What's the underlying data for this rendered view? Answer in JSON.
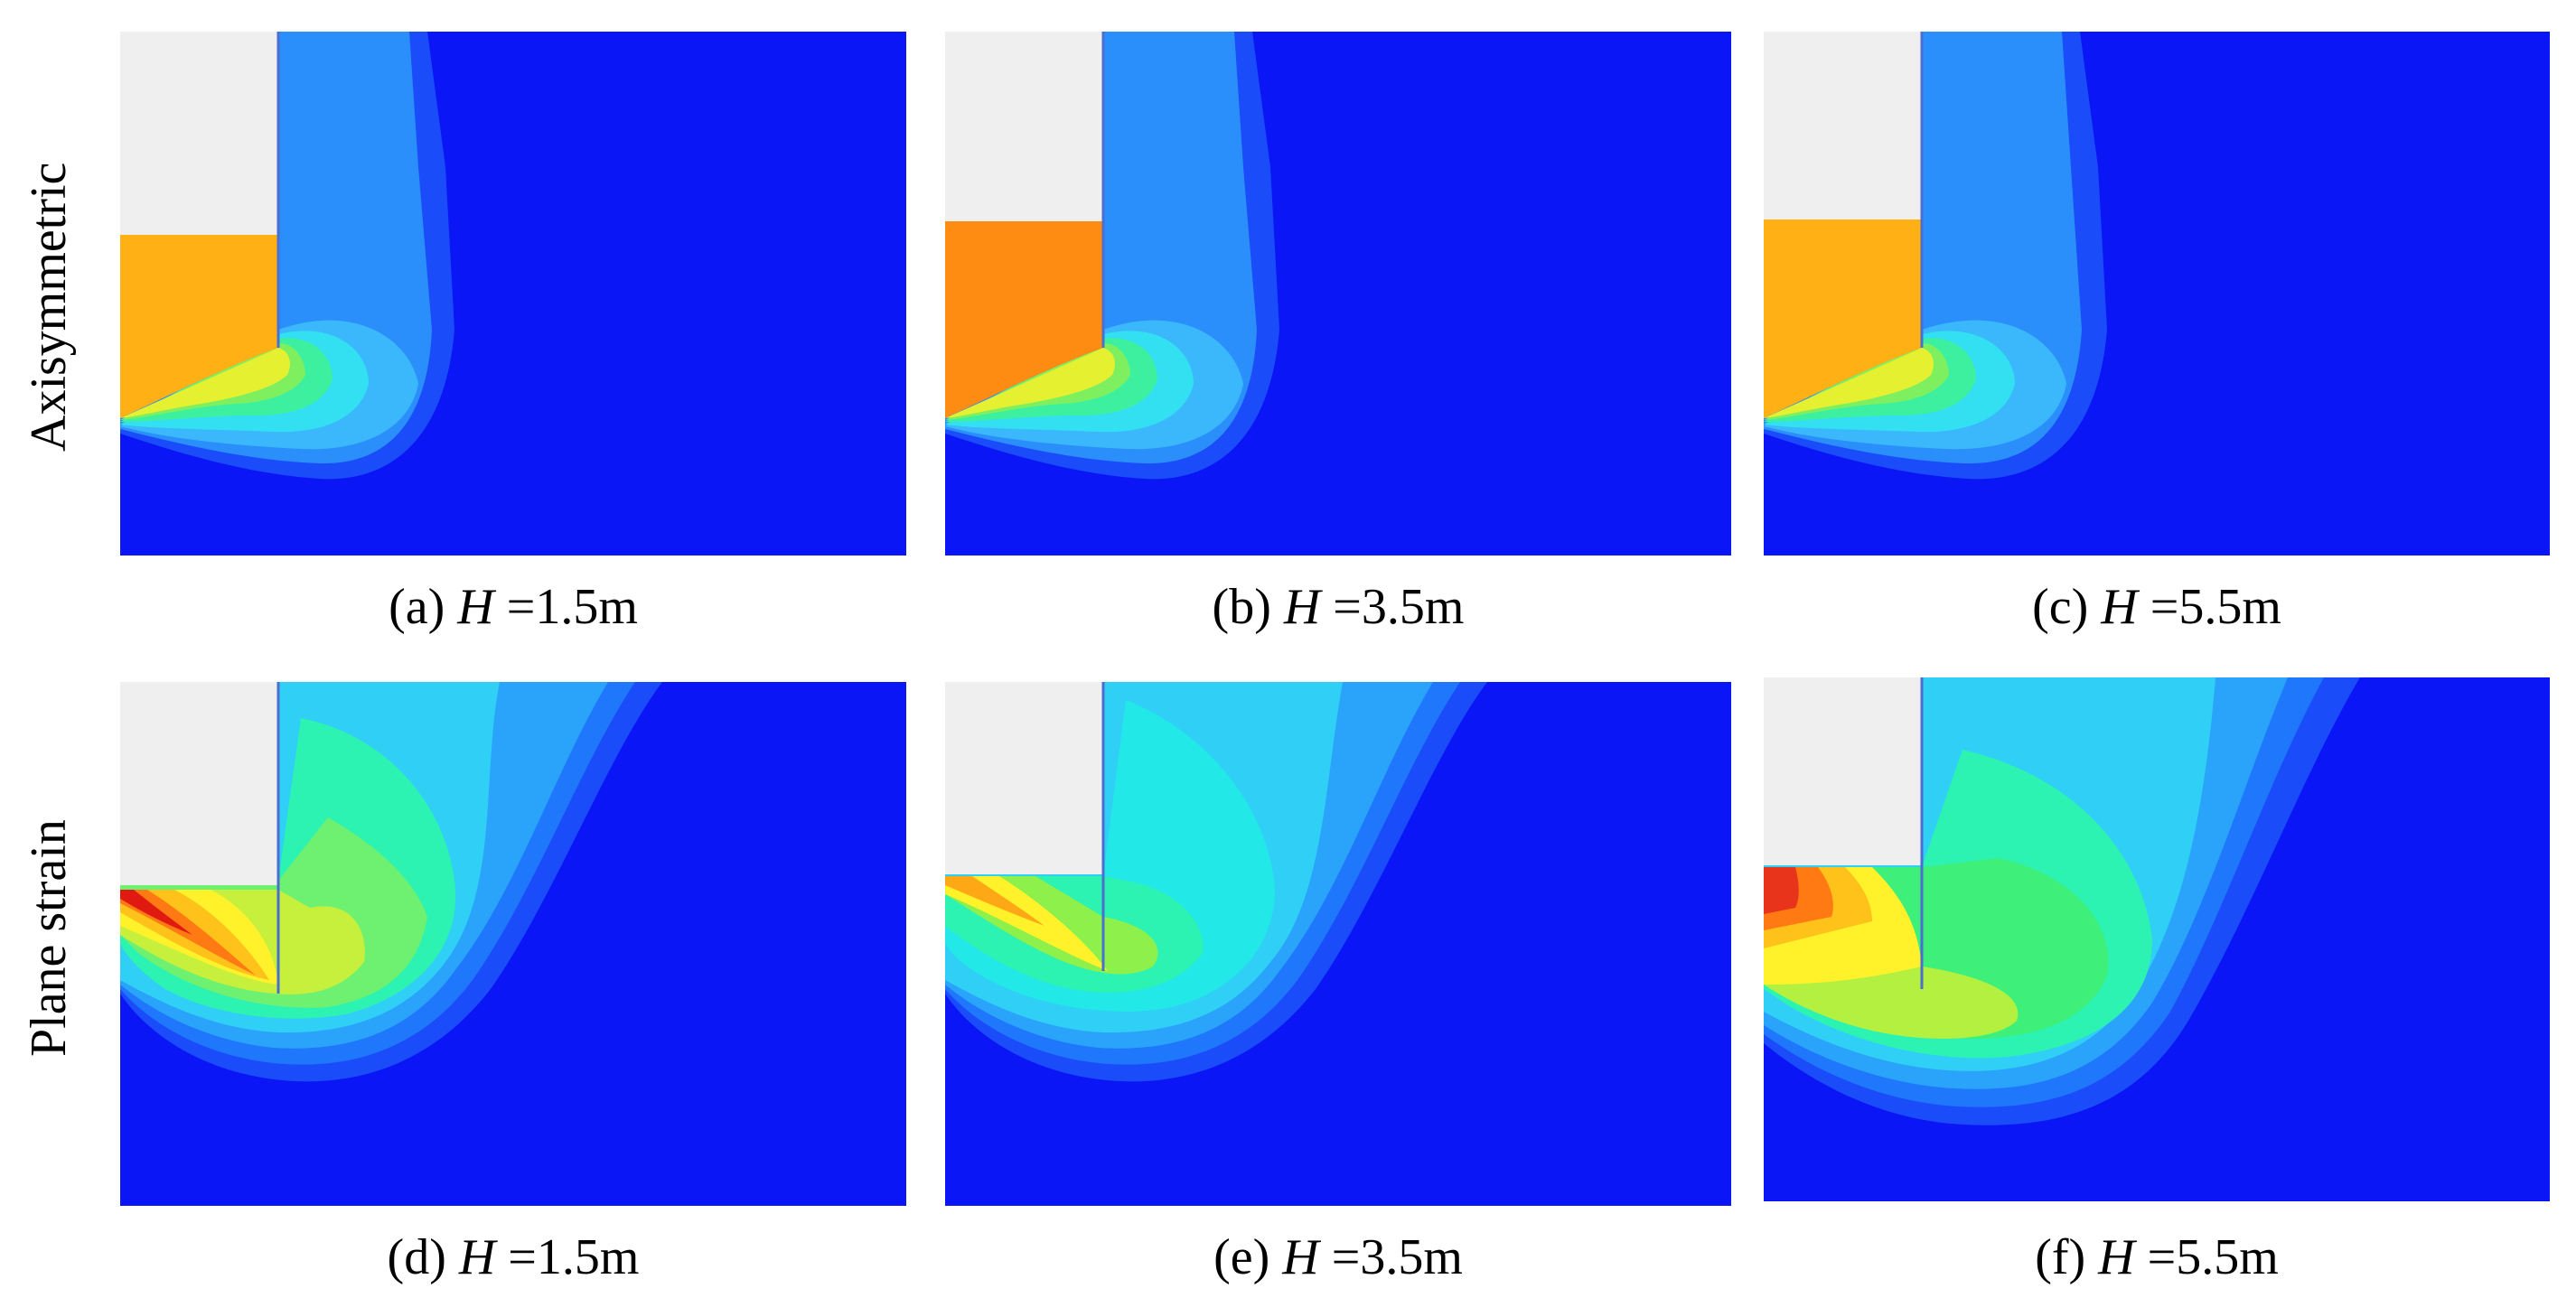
{
  "row_labels": {
    "top": "Axisymmetric",
    "bottom": "Plane strain"
  },
  "panels": [
    {
      "id": "a",
      "tag": "(a) ",
      "var": "H",
      "value": " =1.5m",
      "analysis": "axisymmetric",
      "wall_height_m": 1.5
    },
    {
      "id": "b",
      "tag": "(b) ",
      "var": "H",
      "value": " =3.5m",
      "analysis": "axisymmetric",
      "wall_height_m": 3.5
    },
    {
      "id": "c",
      "tag": "(c) ",
      "var": "H",
      "value": " =5.5m",
      "analysis": "axisymmetric",
      "wall_height_m": 5.5
    },
    {
      "id": "d",
      "tag": "(d) ",
      "var": "H",
      "value": " =1.5m",
      "analysis": "plane-strain",
      "wall_height_m": 1.5
    },
    {
      "id": "e",
      "tag": "(e) ",
      "var": "H",
      "value": " =3.5m",
      "analysis": "plane-strain",
      "wall_height_m": 3.5
    },
    {
      "id": "f",
      "tag": "(f) ",
      "var": "H",
      "value": " =5.5m",
      "analysis": "plane-strain",
      "wall_height_m": 5.5
    }
  ],
  "colors": {
    "background_field": "#0a16f5",
    "excavated": "#efeff0",
    "contour_scale": [
      "#1a4cfa",
      "#1f78fb",
      "#2aa4fb",
      "#3ad0fa",
      "#22f0f0",
      "#2cf2b2",
      "#3ef07a",
      "#8ef04a",
      "#dff030",
      "#fff22a",
      "#ffc21a",
      "#ff8a12",
      "#ff4a10",
      "#e01a10"
    ]
  }
}
